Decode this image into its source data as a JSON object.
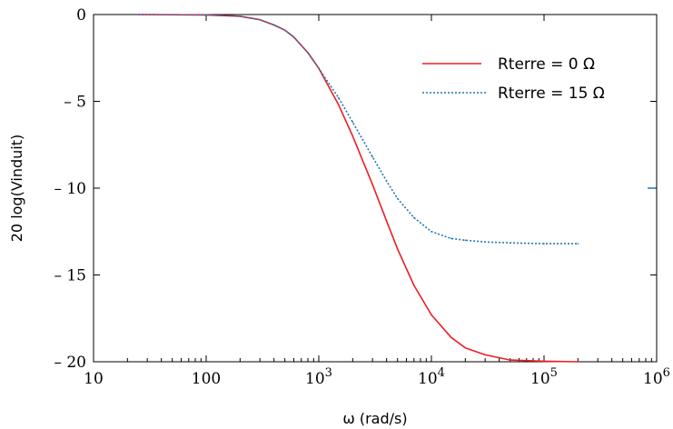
{
  "chart_data": {
    "type": "line",
    "xlabel": "ω (rad/s)",
    "ylabel": "20 log(Vinduit)",
    "x_scale": "log",
    "xlim": [
      10,
      1000000
    ],
    "ylim": [
      -20,
      0
    ],
    "grid": false,
    "legend_position": "top-right",
    "x_ticks": [
      {
        "value": 10,
        "base": "10",
        "exp": ""
      },
      {
        "value": 100,
        "base": "100",
        "exp": ""
      },
      {
        "value": 1000,
        "base": "10",
        "exp": "3"
      },
      {
        "value": 10000,
        "base": "10",
        "exp": "4"
      },
      {
        "value": 100000,
        "base": "10",
        "exp": "5"
      },
      {
        "value": 1000000,
        "base": "10",
        "exp": "6"
      }
    ],
    "y_ticks": [
      {
        "value": 0,
        "label": "0"
      },
      {
        "value": -5,
        "label": "– 5"
      },
      {
        "value": -10,
        "label": "– 10"
      },
      {
        "value": -15,
        "label": "– 15"
      },
      {
        "value": -20,
        "label": "– 20"
      }
    ],
    "series": [
      {
        "name": "Rterre = 0 Ω",
        "color": "#ee1c25",
        "style": "solid",
        "x": [
          25,
          100,
          200,
          300,
          400,
          500,
          600,
          800,
          1000,
          1500,
          2000,
          3000,
          4000,
          5000,
          7000,
          10000,
          15000,
          20000,
          30000,
          50000,
          100000,
          200000
        ],
        "y": [
          0,
          -0.02,
          -0.1,
          -0.3,
          -0.6,
          -0.9,
          -1.3,
          -2.2,
          -3.1,
          -5.2,
          -7.0,
          -9.8,
          -11.9,
          -13.5,
          -15.6,
          -17.3,
          -18.6,
          -19.2,
          -19.6,
          -19.9,
          -19.97,
          -20.0
        ]
      },
      {
        "name": "Rterre = 15 Ω",
        "color": "#1f77b4",
        "style": "dotted",
        "x": [
          25,
          100,
          200,
          300,
          400,
          500,
          600,
          800,
          1000,
          1500,
          2000,
          3000,
          4000,
          5000,
          7000,
          10000,
          15000,
          20000,
          30000,
          50000,
          100000,
          200000
        ],
        "y": [
          0,
          -0.02,
          -0.1,
          -0.3,
          -0.6,
          -0.9,
          -1.3,
          -2.2,
          -3.1,
          -4.8,
          -6.2,
          -8.2,
          -9.6,
          -10.6,
          -11.7,
          -12.5,
          -12.9,
          -13.0,
          -13.1,
          -13.15,
          -13.2,
          -13.2
        ]
      }
    ]
  }
}
